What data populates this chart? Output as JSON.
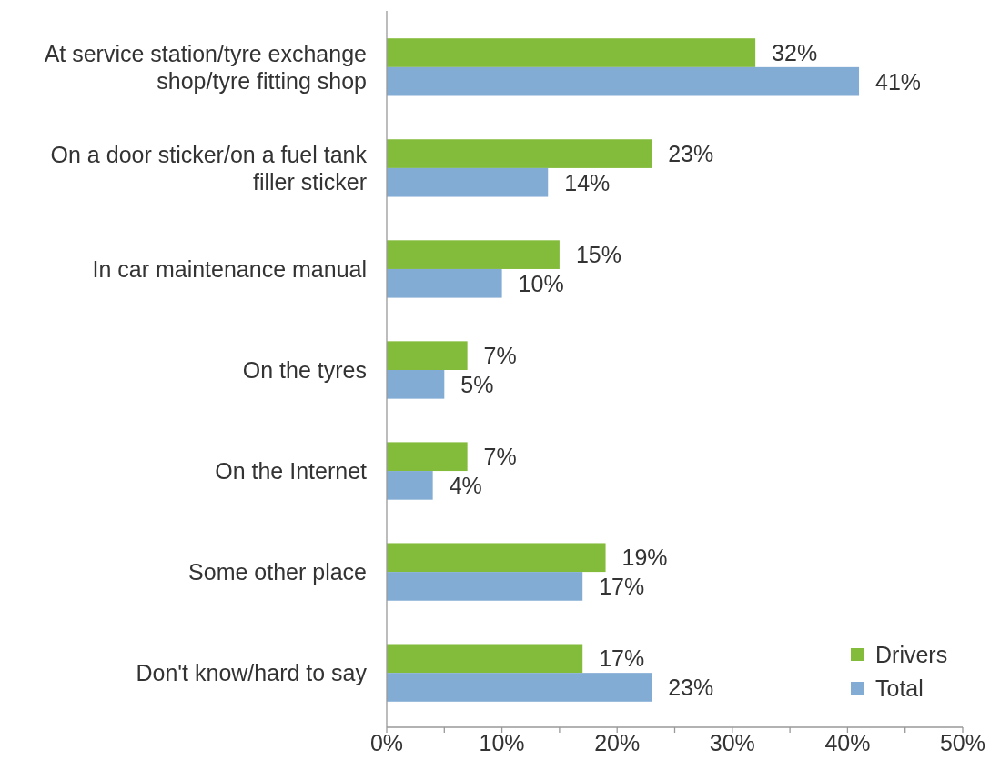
{
  "chart_data": {
    "type": "bar",
    "orientation": "horizontal",
    "categories": [
      "At service station/tyre exchange shop/tyre fitting shop",
      "On a door sticker/on a fuel tank filler sticker",
      "In car maintenance manual",
      "On the tyres",
      "On the Internet",
      "Some other place",
      "Don't know/hard to say"
    ],
    "series": [
      {
        "name": "Drivers",
        "color": "#83bb3a",
        "values": [
          32,
          23,
          15,
          7,
          7,
          19,
          17
        ],
        "value_labels": [
          "32%",
          "23%",
          "15%",
          "7%",
          "7%",
          "19%",
          "17%"
        ]
      },
      {
        "name": "Total",
        "color": "#83acd4",
        "values": [
          41,
          14,
          10,
          5,
          4,
          17,
          23
        ],
        "value_labels": [
          "41%",
          "14%",
          "10%",
          "5%",
          "4%",
          "17%",
          "23%"
        ]
      }
    ],
    "xlim": [
      0,
      50
    ],
    "xticks": [
      {
        "value": 0,
        "label": "0%"
      },
      {
        "value": 5,
        "label": null
      },
      {
        "value": 10,
        "label": "10%"
      },
      {
        "value": 15,
        "label": null
      },
      {
        "value": 20,
        "label": "20%"
      },
      {
        "value": 25,
        "label": null
      },
      {
        "value": 30,
        "label": "30%"
      },
      {
        "value": 35,
        "label": null
      },
      {
        "value": 40,
        "label": "40%"
      },
      {
        "value": 45,
        "label": null
      },
      {
        "value": 50,
        "label": "50%"
      }
    ],
    "grid": false,
    "legend": "bottom right"
  }
}
